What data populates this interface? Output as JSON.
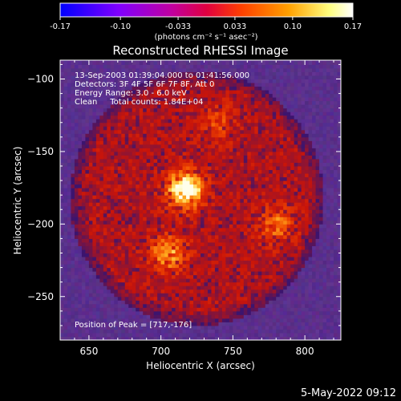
{
  "chart_data": {
    "type": "heatmap",
    "title": "Reconstructed RHESSI Image",
    "xlabel": "Heliocentric X (arcsec)",
    "ylabel": "Heliocentric Y (arcsec)",
    "xlim": [
      630,
      825
    ],
    "ylim": [
      -280,
      -87
    ],
    "x_ticks": [
      650,
      700,
      750,
      800
    ],
    "y_ticks": [
      -100,
      -150,
      -200,
      -250
    ],
    "colorbar": {
      "min": -0.17,
      "max": 0.17,
      "ticks": [
        "-0.17",
        "-0.10",
        "-0.033",
        "0.033",
        "0.10",
        "0.17"
      ],
      "unit_label": "(photons cm⁻² s⁻¹ asec⁻²)",
      "colors": [
        "#0000ff",
        "#8000ff",
        "#c000a0",
        "#e00040",
        "#ff4000",
        "#ffa000",
        "#ffff80",
        "#ffffff"
      ]
    },
    "annotations": {
      "time_range": "13-Sep-2003 01:39:04.000 to 01:41:56.000",
      "detectors": "Detectors: 3F 4F 5F 6F 7F 8F, Att 0",
      "energy": "Energy Range: 3.0 - 6.0 keV",
      "clean": "Clean     Total counts: 1.84E+04",
      "peak": "Position of Peak = [717,-176]"
    },
    "peak": {
      "x": 717,
      "y": -176
    },
    "sources": [
      {
        "x": 717,
        "y": -176,
        "intensity": 1.0
      },
      {
        "x": 705,
        "y": -220,
        "intensity": 0.6
      },
      {
        "x": 780,
        "y": -200,
        "intensity": 0.45
      },
      {
        "x": 740,
        "y": -130,
        "intensity": 0.3
      }
    ],
    "disk": {
      "cx": 725,
      "cy": -182,
      "r": 88
    }
  },
  "footer": {
    "date": "5-May-2022 09:12"
  }
}
